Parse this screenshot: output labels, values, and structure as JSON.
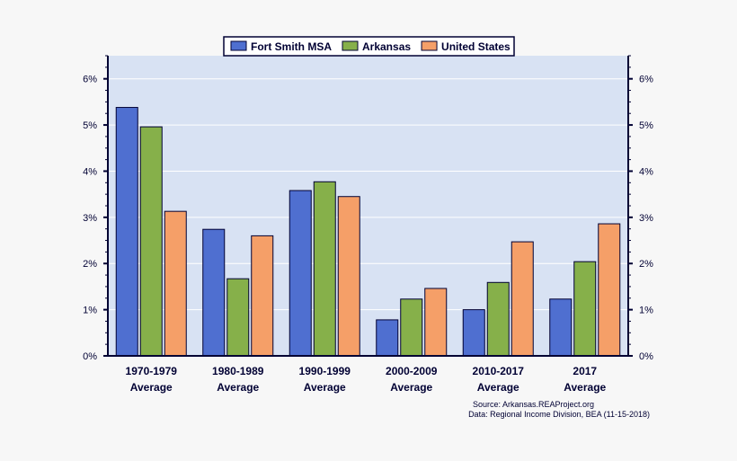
{
  "chart_data": {
    "type": "bar",
    "title": "",
    "xlabel": "",
    "ylabel": "",
    "categories": [
      [
        "1970-1979",
        "Average"
      ],
      [
        "1980-1989",
        "Average"
      ],
      [
        "1990-1999",
        "Average"
      ],
      [
        "2000-2009",
        "Average"
      ],
      [
        "2010-2017",
        "Average"
      ],
      [
        "2017",
        "Average"
      ]
    ],
    "series": [
      {
        "name": "Fort Smith MSA",
        "color": "#4f6fd0",
        "values": [
          5.38,
          2.74,
          3.58,
          0.78,
          1.0,
          1.23
        ]
      },
      {
        "name": "Arkansas",
        "color": "#86b04a",
        "values": [
          4.96,
          1.67,
          3.77,
          1.23,
          1.59,
          2.04
        ]
      },
      {
        "name": "United States",
        "color": "#f59f68",
        "values": [
          3.13,
          2.6,
          3.45,
          1.46,
          2.47,
          2.86
        ]
      }
    ],
    "ylim": [
      0,
      6.5
    ],
    "yticks": [
      {
        "value": 0,
        "label": "0%"
      },
      {
        "value": 1,
        "label": "1%"
      },
      {
        "value": 2,
        "label": "2%"
      },
      {
        "value": 3,
        "label": "3%"
      },
      {
        "value": 4,
        "label": "4%"
      },
      {
        "value": 5,
        "label": "5%"
      },
      {
        "value": 6,
        "label": "6%"
      }
    ],
    "grid": true,
    "legend_position": "top-center",
    "plot_background": "#d8e2f3"
  },
  "source": {
    "line1": "Source: Arkansas.REAProject.org",
    "line2": "Data: Regional Income Division, BEA (11-15-2018)"
  }
}
